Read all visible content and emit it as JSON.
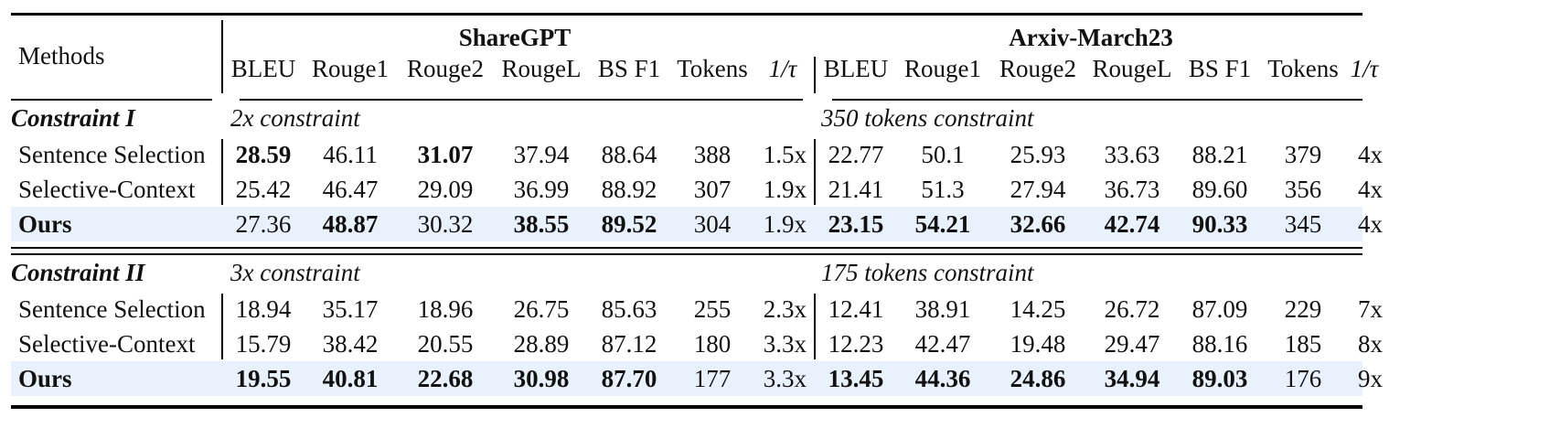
{
  "table": {
    "header": {
      "methods_label": "Methods",
      "groups": [
        {
          "name": "ShareGPT",
          "columns": [
            "BLEU",
            "Rouge1",
            "Rouge2",
            "RougeL",
            "BS F1",
            "Tokens",
            "1/τ"
          ]
        },
        {
          "name": "Arxiv-March23",
          "columns": [
            "BLEU",
            "Rouge1",
            "Rouge2",
            "RougeL",
            "BS F1",
            "Tokens",
            "1/τ"
          ]
        }
      ]
    },
    "sections": [
      {
        "title": "Constraint I",
        "sharegpt_note": "2x constraint",
        "arxiv_note": "350 tokens constraint",
        "rows": [
          {
            "method": "Sentence Selection",
            "values": [
              "28.59",
              "46.11",
              "31.07",
              "37.94",
              "88.64",
              "388",
              "1.5x",
              "22.77",
              "50.1",
              "25.93",
              "33.63",
              "88.21",
              "379",
              "4x"
            ],
            "bold": [
              0,
              2
            ]
          },
          {
            "method": "Selective-Context",
            "values": [
              "25.42",
              "46.47",
              "29.09",
              "36.99",
              "88.92",
              "307",
              "1.9x",
              "21.41",
              "51.3",
              "27.94",
              "36.73",
              "89.60",
              "356",
              "4x"
            ],
            "bold": []
          },
          {
            "method": "Ours",
            "values": [
              "27.36",
              "48.87",
              "30.32",
              "38.55",
              "89.52",
              "304",
              "1.9x",
              "23.15",
              "54.21",
              "32.66",
              "42.74",
              "90.33",
              "345",
              "4x"
            ],
            "bold": [
              1,
              3,
              4,
              7,
              8,
              9,
              10,
              11
            ]
          }
        ]
      },
      {
        "title": "Constraint II",
        "sharegpt_note": "3x constraint",
        "arxiv_note": "175 tokens constraint",
        "rows": [
          {
            "method": "Sentence Selection",
            "values": [
              "18.94",
              "35.17",
              "18.96",
              "26.75",
              "85.63",
              "255",
              "2.3x",
              "12.41",
              "38.91",
              "14.25",
              "26.72",
              "87.09",
              "229",
              "7x"
            ],
            "bold": []
          },
          {
            "method": "Selective-Context",
            "values": [
              "15.79",
              "38.42",
              "20.55",
              "28.89",
              "87.12",
              "180",
              "3.3x",
              "12.23",
              "42.47",
              "19.48",
              "29.47",
              "88.16",
              "185",
              "8x"
            ],
            "bold": []
          },
          {
            "method": "Ours",
            "values": [
              "19.55",
              "40.81",
              "22.68",
              "30.98",
              "87.70",
              "177",
              "3.3x",
              "13.45",
              "44.36",
              "24.86",
              "34.94",
              "89.03",
              "176",
              "9x"
            ],
            "bold": [
              0,
              1,
              2,
              3,
              4,
              7,
              8,
              9,
              10,
              11
            ]
          }
        ]
      }
    ],
    "highlight_color": "#e8f1fc"
  }
}
